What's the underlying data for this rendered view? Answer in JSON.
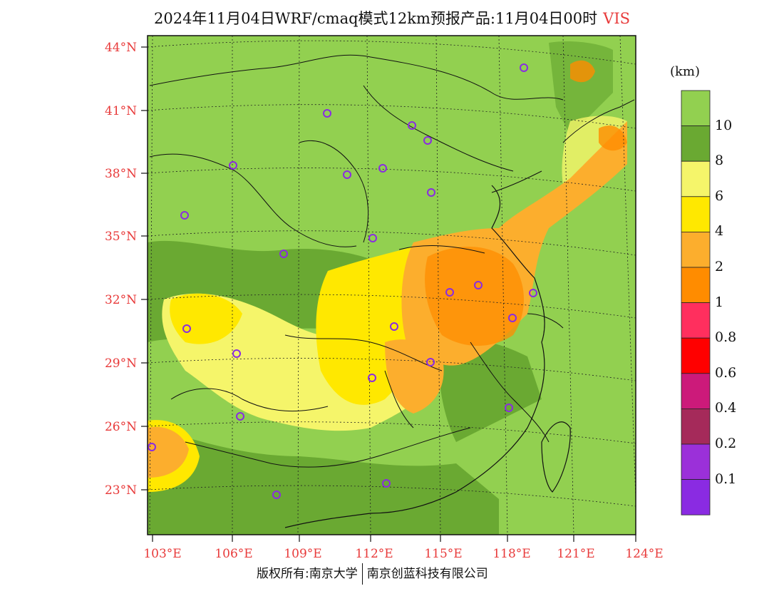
{
  "title": {
    "text": "2024年11月04日WRF/cmaq模式12km预报产品:11月04日00时",
    "variable": "VIS"
  },
  "map": {
    "lon_labels": [
      "103°E",
      "106°E",
      "109°E",
      "112°E",
      "115°E",
      "118°E",
      "121°E",
      "124°E"
    ],
    "lat_labels": [
      "44°N",
      "41°N",
      "38°N",
      "35°N",
      "32°N",
      "29°N",
      "26°N",
      "23°N"
    ],
    "label_color": "#e83a3a",
    "stations_count": 24,
    "station_color": "#8a2be2"
  },
  "legend": {
    "unit": "(km)",
    "labels": [
      "10",
      "8",
      "6",
      "4",
      "2",
      "1",
      "0.8",
      "0.6",
      "0.4",
      "0.2",
      "0.1"
    ],
    "colors": [
      "#92d050",
      "#6aa932",
      "#f5f56a",
      "#ffe800",
      "#fcae2d",
      "#ff8c00",
      "#ff2f5e",
      "#ff0000",
      "#cc1a7a",
      "#a52a5a",
      "#9b30d9",
      "#8a2be2"
    ]
  },
  "credit": {
    "left": "版权所有:南京大学",
    "right": "南京创蓝科技有限公司"
  }
}
